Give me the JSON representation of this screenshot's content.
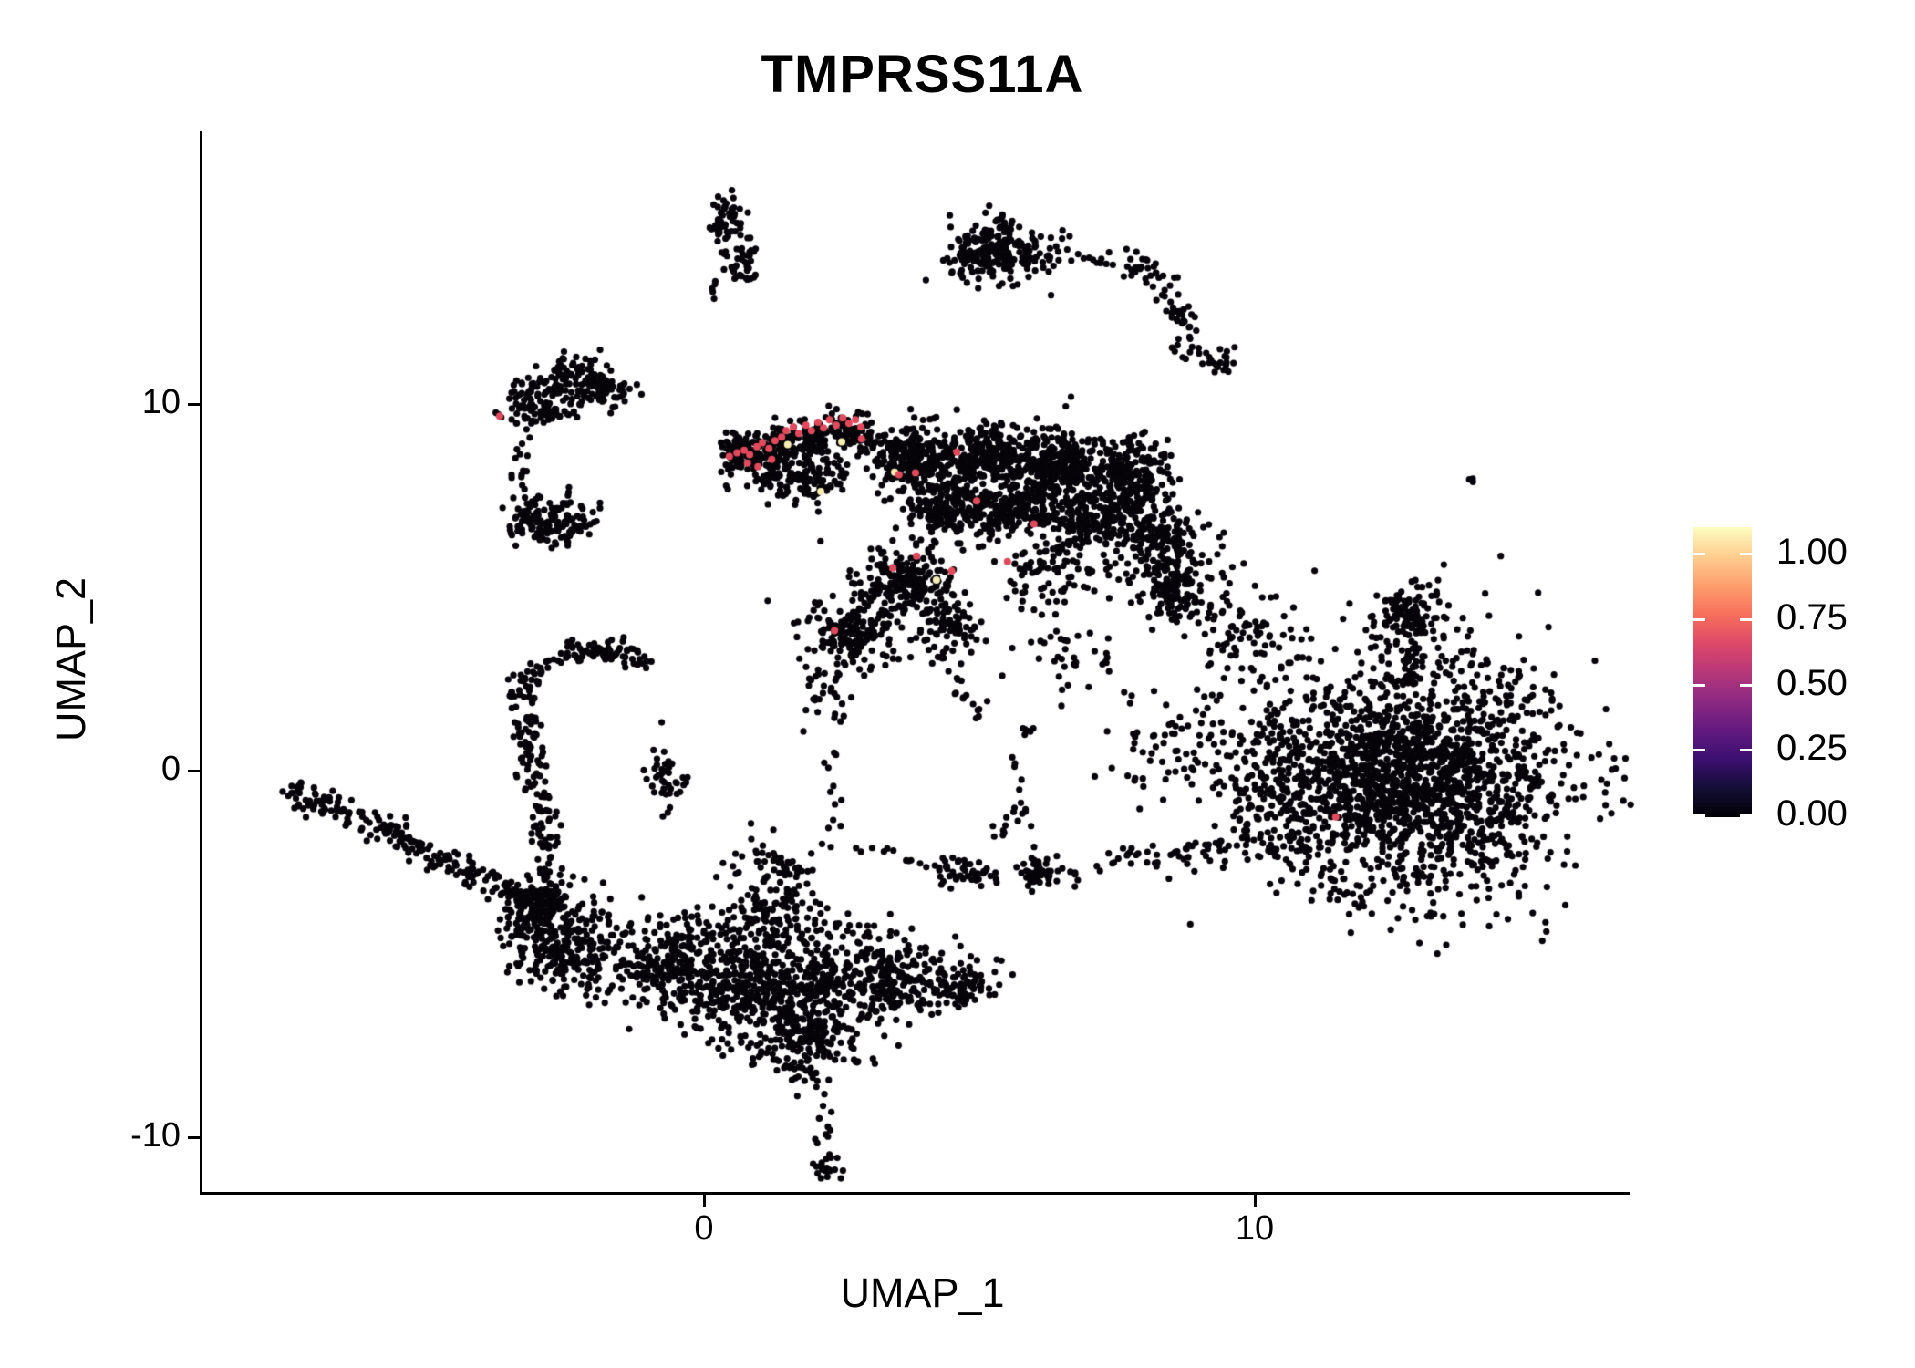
{
  "chart_data": {
    "type": "scatter",
    "title": "TMPRSS11A",
    "xlabel": "UMAP_1",
    "ylabel": "UMAP_2",
    "xlim": [
      -9.1,
      16.9
    ],
    "ylim": [
      -11.5,
      17.4
    ],
    "grid": false,
    "x_ticks": [
      {
        "v": 0,
        "label": "0"
      },
      {
        "v": 10,
        "label": "10"
      }
    ],
    "y_ticks": [
      {
        "v": 10,
        "label": "10"
      },
      {
        "v": 0,
        "label": "0"
      },
      {
        "v": -10,
        "label": "-10"
      }
    ],
    "legend": {
      "position": "right",
      "colormap": "magma",
      "entries": [
        {
          "v": 1.0,
          "label": "1.00"
        },
        {
          "v": 0.75,
          "label": "0.75"
        },
        {
          "v": 0.5,
          "label": "0.50"
        },
        {
          "v": 0.25,
          "label": "0.25"
        },
        {
          "v": 0.0,
          "label": "0.00"
        }
      ],
      "gradient_stops": [
        "#000004",
        "#140e36",
        "#3b0f70",
        "#641a80",
        "#8c2981",
        "#b73779",
        "#de4968",
        "#f7705c",
        "#fe9f6d",
        "#fece91",
        "#fcfdbf"
      ]
    },
    "colors": {
      "point_zero_expression": "#060409",
      "point_mid_expression": "#e2495d",
      "point_high_expression": "#f6edb2",
      "axis": "#000000",
      "legend_tick": "#ffffff"
    },
    "clusters": [
      {
        "id": "top-small-lobe1",
        "t": "blob",
        "c": [
          0.41,
          15.0
        ],
        "s": [
          10,
          14
        ],
        "n": 55
      },
      {
        "id": "top-small-lobe2",
        "t": "blob",
        "c": [
          0.71,
          13.89
        ],
        "s": [
          9,
          11
        ],
        "n": 40
      },
      {
        "id": "top-small-pair",
        "t": "blob",
        "c": [
          0.22,
          13.1
        ],
        "s": [
          4,
          5
        ],
        "n": 5
      },
      {
        "id": "comet-main",
        "t": "blob",
        "c": [
          5.26,
          14.2
        ],
        "s": [
          26,
          17
        ],
        "n": 230
      },
      {
        "id": "comet-tail-blob",
        "t": "blob",
        "c": [
          6.1,
          14.07
        ],
        "s": [
          12,
          6
        ],
        "n": 18
      },
      {
        "id": "comet-junction",
        "t": "blob",
        "c": [
          7.95,
          13.82
        ],
        "s": [
          12,
          8
        ],
        "n": 22
      },
      {
        "id": "comet-mid-blob",
        "t": "blob",
        "c": [
          8.71,
          12.3
        ],
        "s": [
          7,
          11
        ],
        "n": 16
      },
      {
        "id": "comet-end-blob",
        "t": "blob",
        "c": [
          9.42,
          11.21
        ],
        "s": [
          8,
          7
        ],
        "n": 16
      },
      {
        "id": "isolated-dot",
        "t": "blob",
        "c": [
          13.9,
          7.91
        ],
        "s": [
          3,
          3
        ],
        "n": 3
      },
      {
        "id": "left-a",
        "t": "blob",
        "c": [
          -3.1,
          10.13
        ],
        "s": [
          16,
          15
        ],
        "n": 60
      },
      {
        "id": "left-b",
        "t": "blob",
        "c": [
          -2.43,
          10.73
        ],
        "s": [
          20,
          14
        ],
        "n": 90
      },
      {
        "id": "left-c",
        "t": "blob",
        "c": [
          -1.82,
          10.48
        ],
        "s": [
          15,
          12
        ],
        "n": 50
      },
      {
        "id": "left-bottom-edge",
        "t": "blob",
        "c": [
          -2.85,
          9.75
        ],
        "s": [
          22,
          5
        ],
        "n": 35
      },
      {
        "id": "left-tail",
        "t": "blob",
        "c": [
          -1.45,
          10.4
        ],
        "s": [
          10,
          4
        ],
        "n": 8
      },
      {
        "id": "left2-a",
        "t": "blob",
        "c": [
          -3.1,
          6.9
        ],
        "s": [
          16,
          13
        ],
        "n": 60
      },
      {
        "id": "left2-b",
        "t": "blob",
        "c": [
          -2.6,
          6.8
        ],
        "s": [
          20,
          14
        ],
        "n": 80
      },
      {
        "id": "wing-under",
        "t": "blob",
        "c": [
          1.71,
          8.04
        ],
        "s": [
          32,
          13
        ],
        "n": 150
      },
      {
        "id": "main-1",
        "t": "blob",
        "c": [
          3.77,
          8.54
        ],
        "s": [
          23,
          16
        ],
        "n": 240
      },
      {
        "id": "main-2",
        "t": "blob",
        "c": [
          5.1,
          8.54
        ],
        "s": [
          26,
          17
        ],
        "n": 270
      },
      {
        "id": "main-3",
        "t": "blob",
        "c": [
          6.42,
          8.42
        ],
        "s": [
          26,
          18
        ],
        "n": 270
      },
      {
        "id": "main-4",
        "t": "blob",
        "c": [
          7.67,
          8.04
        ],
        "s": [
          23,
          20
        ],
        "n": 210
      },
      {
        "id": "main-5",
        "t": "blob",
        "c": [
          4.44,
          7.16
        ],
        "s": [
          26,
          14
        ],
        "n": 190
      },
      {
        "id": "main-6",
        "t": "blob",
        "c": [
          5.76,
          7.04
        ],
        "s": [
          29,
          16
        ],
        "n": 210
      },
      {
        "id": "main-7",
        "t": "blob",
        "c": [
          7.09,
          6.78
        ],
        "s": [
          26,
          17
        ],
        "n": 190
      },
      {
        "id": "main-right-lobe",
        "t": "blob",
        "c": [
          8.25,
          6.41
        ],
        "s": [
          20,
          23
        ],
        "n": 140
      },
      {
        "id": "main-right-lower",
        "t": "blob",
        "c": [
          8.49,
          4.9
        ],
        "s": [
          14,
          17
        ],
        "n": 70
      },
      {
        "id": "lower-left-lobe",
        "t": "blob",
        "c": [
          3.69,
          5.15
        ],
        "s": [
          26,
          20
        ],
        "n": 210
      },
      {
        "id": "lower-left-knot",
        "t": "blob",
        "c": [
          4.44,
          3.89
        ],
        "s": [
          17,
          14
        ],
        "n": 75
      },
      {
        "id": "wing-tail-lobe",
        "t": "blob",
        "c": [
          2.7,
          3.77
        ],
        "s": [
          26,
          20
        ],
        "n": 170
      },
      {
        "id": "wing-tail-sparse",
        "t": "blob",
        "c": [
          2.28,
          2.14
        ],
        "s": [
          14,
          23
        ],
        "n": 30
      },
      {
        "id": "mid-sparse",
        "t": "blob",
        "c": [
          6.26,
          5.4
        ],
        "s": [
          34,
          20
        ],
        "n": 80
      },
      {
        "id": "bridge-1",
        "t": "blob",
        "c": [
          8.74,
          5.15
        ],
        "s": [
          31,
          31
        ],
        "n": 110
      },
      {
        "id": "bridge-2",
        "t": "blob",
        "c": [
          9.9,
          3.64
        ],
        "s": [
          26,
          26
        ],
        "n": 70
      },
      {
        "id": "stream-spray",
        "t": "blob",
        "c": [
          8.74,
          0.63
        ],
        "s": [
          46,
          29
        ],
        "n": 85
      },
      {
        "id": "mid-lower-sparse",
        "t": "blob",
        "c": [
          6.75,
          3.14
        ],
        "s": [
          34,
          23
        ],
        "n": 40
      },
      {
        "id": "small-left-pair",
        "t": "blob",
        "c": [
          -0.73,
          -0.25
        ],
        "s": [
          12,
          15
        ],
        "n": 42
      },
      {
        "id": "hub",
        "t": "blob",
        "c": [
          -2.48,
          -4.77
        ],
        "s": [
          31,
          27
        ],
        "n": 270
      },
      {
        "id": "hub-left",
        "t": "blob",
        "c": [
          -3.26,
          -4.15
        ],
        "s": [
          14,
          14
        ],
        "n": 50
      },
      {
        "id": "bottom-1",
        "t": "blob",
        "c": [
          -0.61,
          -5.28
        ],
        "s": [
          29,
          24
        ],
        "n": 240
      },
      {
        "id": "bottom-2",
        "t": "blob",
        "c": [
          0.96,
          -5.9
        ],
        "s": [
          40,
          31
        ],
        "n": 400
      },
      {
        "id": "bottom-dip",
        "t": "blob",
        "c": [
          1.87,
          -7.29
        ],
        "s": [
          31,
          23
        ],
        "n": 220
      },
      {
        "id": "bottom-3",
        "t": "blob",
        "c": [
          3.36,
          -5.65
        ],
        "s": [
          31,
          23
        ],
        "n": 240
      },
      {
        "id": "bottom-end",
        "t": "blob",
        "c": [
          4.68,
          -5.85
        ],
        "s": [
          18,
          14
        ],
        "n": 80
      },
      {
        "id": "bottom-fringe",
        "t": "blob",
        "c": [
          1.29,
          -4.27
        ],
        "s": [
          51,
          10
        ],
        "n": 60
      },
      {
        "id": "tail-end-blob",
        "t": "blob",
        "c": [
          2.22,
          -10.73
        ],
        "s": [
          8,
          8
        ],
        "n": 22
      },
      {
        "id": "mid-blob",
        "t": "blob",
        "c": [
          4.74,
          -2.76
        ],
        "s": [
          17,
          8
        ],
        "n": 44
      },
      {
        "id": "mid-bits",
        "t": "blob",
        "c": [
          5.35,
          -1.63
        ],
        "s": [
          6,
          8
        ],
        "n": 7
      },
      {
        "id": "connector-1",
        "t": "blob",
        "c": [
          1.29,
          -3.27
        ],
        "s": [
          23,
          26
        ],
        "n": 120
      },
      {
        "id": "connector-2",
        "t": "blob",
        "c": [
          2.2,
          -5.45
        ],
        "s": [
          16,
          22
        ],
        "n": 75
      },
      {
        "id": "stream-left-blob",
        "t": "blob",
        "c": [
          6.01,
          -2.84
        ],
        "s": [
          9,
          9
        ],
        "n": 30
      },
      {
        "id": "right-main",
        "t": "blob",
        "c": [
          12.8,
          -0.18
        ],
        "s": [
          80,
          60
        ],
        "n": 1650
      },
      {
        "id": "right-halo",
        "t": "blob",
        "c": [
          12.8,
          -0.18
        ],
        "s": [
          100,
          75
        ],
        "n": 200
      },
      {
        "id": "right-left-margin",
        "t": "blob",
        "c": [
          10.31,
          -0.13
        ],
        "s": [
          26,
          46
        ],
        "n": 130
      },
      {
        "id": "right-ear",
        "t": "blob",
        "c": [
          12.81,
          4.22
        ],
        "s": [
          22,
          18
        ],
        "n": 120
      },
      {
        "id": "right-ear-neck",
        "t": "blob",
        "c": [
          12.85,
          3.02
        ],
        "s": [
          8,
          11
        ],
        "n": 20
      },
      {
        "id": "streak-end",
        "t": "blob",
        "c": [
          -3.1,
          -3.5
        ],
        "s": [
          14,
          10
        ],
        "n": 60
      },
      {
        "id": "wing-edge",
        "t": "line",
        "p1": [
          0.38,
          8.54
        ],
        "p2": [
          3.03,
          9.37
        ],
        "w": 10,
        "n": 330
      },
      {
        "id": "comet-arc",
        "t": "line",
        "p1": [
          6.6,
          14.05
        ],
        "p2": [
          7.5,
          13.85
        ],
        "w": 5,
        "n": 12
      },
      {
        "id": "comet-chain-down",
        "t": "line",
        "p1": [
          8.11,
          13.57
        ],
        "p2": [
          8.66,
          12.44
        ],
        "w": 6,
        "n": 20
      },
      {
        "id": "comet-chain-2",
        "t": "line",
        "p1": [
          8.49,
          11.56
        ],
        "p2": [
          9.24,
          11.28
        ],
        "w": 5,
        "n": 14
      },
      {
        "id": "left-chain",
        "t": "line",
        "p1": [
          -3.48,
          9.12
        ],
        "p2": [
          -3.28,
          7.64
        ],
        "w": 5,
        "n": 12
      },
      {
        "id": "lower-chain-1",
        "t": "line",
        "p1": [
          4.27,
          3.27
        ],
        "p2": [
          4.97,
          1.58
        ],
        "w": 5,
        "n": 16
      },
      {
        "id": "lower-chain-2",
        "t": "line",
        "p1": [
          4.97,
          1.58
        ],
        "p2": [
          6.09,
          1.01
        ],
        "w": 5,
        "n": 10
      },
      {
        "id": "arch-limb",
        "t": "line",
        "p1": [
          -3.31,
          2.64
        ],
        "p2": [
          -2.91,
          -2.26
        ],
        "w": 9,
        "n": 130
      },
      {
        "id": "arch-stream",
        "t": "line",
        "p1": [
          -2.91,
          -2.26
        ],
        "p2": [
          -2.68,
          -3.64
        ],
        "w": 9,
        "n": 35
      },
      {
        "id": "long-streak",
        "t": "line",
        "p1": [
          -7.52,
          -0.45
        ],
        "p2": [
          -2.68,
          -3.89
        ],
        "w": 8,
        "n": 240
      },
      {
        "id": "bottom-tail",
        "t": "line",
        "p1": [
          2.09,
          -8.72
        ],
        "p2": [
          2.17,
          -10.23
        ],
        "w": 4,
        "n": 10
      },
      {
        "id": "dotted-line",
        "t": "line",
        "p1": [
          2.78,
          -2.04
        ],
        "p2": [
          4.24,
          -2.56
        ],
        "w": 4,
        "n": 13
      },
      {
        "id": "connector-chain",
        "t": "line",
        "p1": [
          2.37,
          0.63
        ],
        "p2": [
          2.32,
          -2.26
        ],
        "w": 5,
        "n": 13
      },
      {
        "id": "right-stream",
        "t": "line",
        "p1": [
          5.73,
          -2.94
        ],
        "p2": [
          11.09,
          -1.71
        ],
        "w": 8,
        "n": 95
      },
      {
        "id": "bottom-right-trail",
        "t": "line",
        "p1": [
          5.51,
          0.75
        ],
        "p2": [
          6.01,
          -2.64
        ],
        "w": 5,
        "n": 16
      },
      {
        "id": "arch",
        "t": "arc",
        "p0": [
          -3.21,
          2.44
        ],
        "p1": [
          -2.1,
          3.9
        ],
        "p2": [
          -1.08,
          2.91
        ],
        "w": 9,
        "n": 95
      }
    ],
    "expressing_cells_mid": [
      [
        0.46,
        8.57
      ],
      [
        0.6,
        8.67
      ],
      [
        0.73,
        8.74
      ],
      [
        0.83,
        8.62
      ],
      [
        0.96,
        8.84
      ],
      [
        1.06,
        8.94
      ],
      [
        1.18,
        8.79
      ],
      [
        1.29,
        9.0
      ],
      [
        1.41,
        9.1
      ],
      [
        1.49,
        9.27
      ],
      [
        1.62,
        9.37
      ],
      [
        1.72,
        9.2
      ],
      [
        1.85,
        9.42
      ],
      [
        1.95,
        9.27
      ],
      [
        2.07,
        9.5
      ],
      [
        2.17,
        9.35
      ],
      [
        2.28,
        9.57
      ],
      [
        2.4,
        9.42
      ],
      [
        2.52,
        9.62
      ],
      [
        2.63,
        9.47
      ],
      [
        2.75,
        9.57
      ],
      [
        2.85,
        9.37
      ],
      [
        0.79,
        8.39
      ],
      [
        0.98,
        8.29
      ],
      [
        1.23,
        8.49
      ],
      [
        2.86,
        9.05
      ],
      [
        3.54,
        8.07
      ],
      [
        3.84,
        8.12
      ],
      [
        4.59,
        8.69
      ],
      [
        4.95,
        7.36
      ],
      [
        5.99,
        6.73
      ],
      [
        3.86,
        5.85
      ],
      [
        3.43,
        5.53
      ],
      [
        4.5,
        5.45
      ],
      [
        2.37,
        3.82
      ],
      [
        5.51,
        5.7
      ],
      [
        -3.71,
        9.67
      ],
      [
        11.47,
        -1.26
      ]
    ],
    "expressing_cells_high": [
      [
        1.52,
        8.89
      ],
      [
        2.5,
        8.97
      ],
      [
        2.12,
        7.61
      ],
      [
        3.46,
        8.14
      ],
      [
        4.22,
        5.2
      ]
    ]
  }
}
